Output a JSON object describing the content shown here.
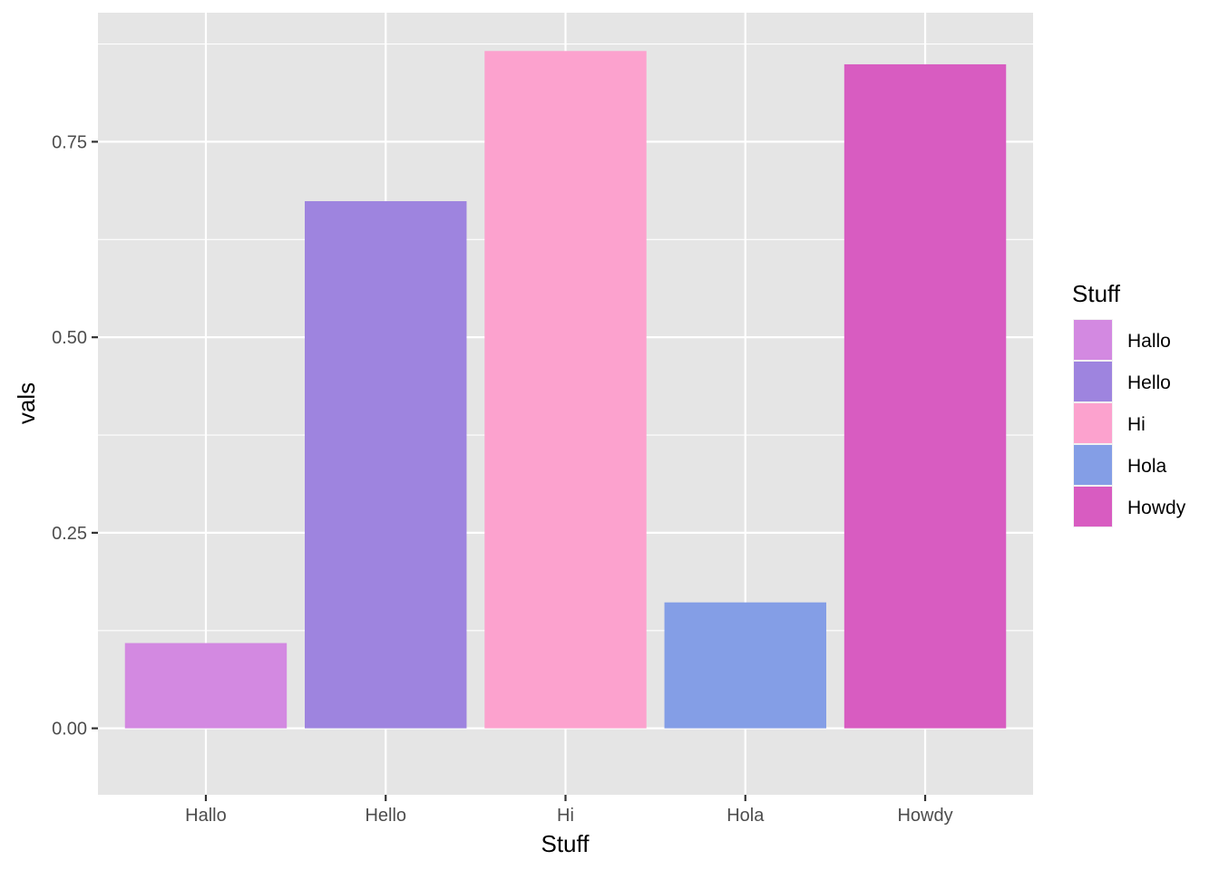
{
  "chart_data": {
    "type": "bar",
    "title": "",
    "xlabel": "Stuff",
    "ylabel": "vals",
    "categories": [
      "Hallo",
      "Hello",
      "Hi",
      "Hola",
      "Howdy"
    ],
    "values": [
      0.109,
      0.674,
      0.866,
      0.161,
      0.849
    ],
    "colors": [
      "#D389E1",
      "#9E84DF",
      "#FCA2CE",
      "#849EE6",
      "#D85CC1"
    ],
    "ylim": [
      -0.085,
      0.915
    ],
    "yticks": [
      0.0,
      0.25,
      0.5,
      0.75
    ],
    "ytick_labels": [
      "0.00",
      "0.25",
      "0.50",
      "0.75"
    ],
    "grid": true,
    "panel_background": "#E5E5E5",
    "legend": {
      "title": "Stuff",
      "placement": "right",
      "entries": [
        "Hallo",
        "Hello",
        "Hi",
        "Hola",
        "Howdy"
      ]
    }
  }
}
